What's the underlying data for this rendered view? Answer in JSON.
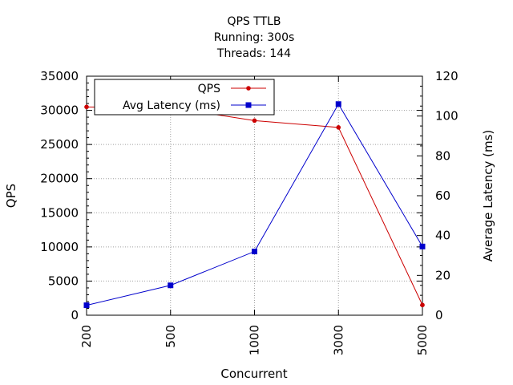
{
  "chart_data": {
    "type": "line",
    "title": [
      "QPS   TTLB",
      "Running: 300s",
      "Threads: 144"
    ],
    "xlabel": "Concurrent",
    "ylabel": "QPS",
    "y2label": "Average Latency (ms)",
    "categories": [
      "200",
      "500",
      "1000",
      "3000",
      "5000"
    ],
    "ylim": [
      0,
      35000
    ],
    "yticks": [
      0,
      5000,
      10000,
      15000,
      20000,
      25000,
      30000,
      35000
    ],
    "y2lim": [
      0,
      120
    ],
    "y2ticks": [
      0,
      20,
      40,
      60,
      80,
      100,
      120
    ],
    "grid": true,
    "legend_position": "top-left",
    "series": [
      {
        "name": "QPS",
        "axis": "left",
        "color": "#cc0000",
        "marker": "dot",
        "values": [
          30500,
          30400,
          28500,
          27500,
          1500
        ]
      },
      {
        "name": "Avg Latency (ms)",
        "axis": "right",
        "color": "#0000cc",
        "marker": "square",
        "values": [
          5,
          15,
          32,
          106,
          34.5
        ]
      }
    ]
  }
}
